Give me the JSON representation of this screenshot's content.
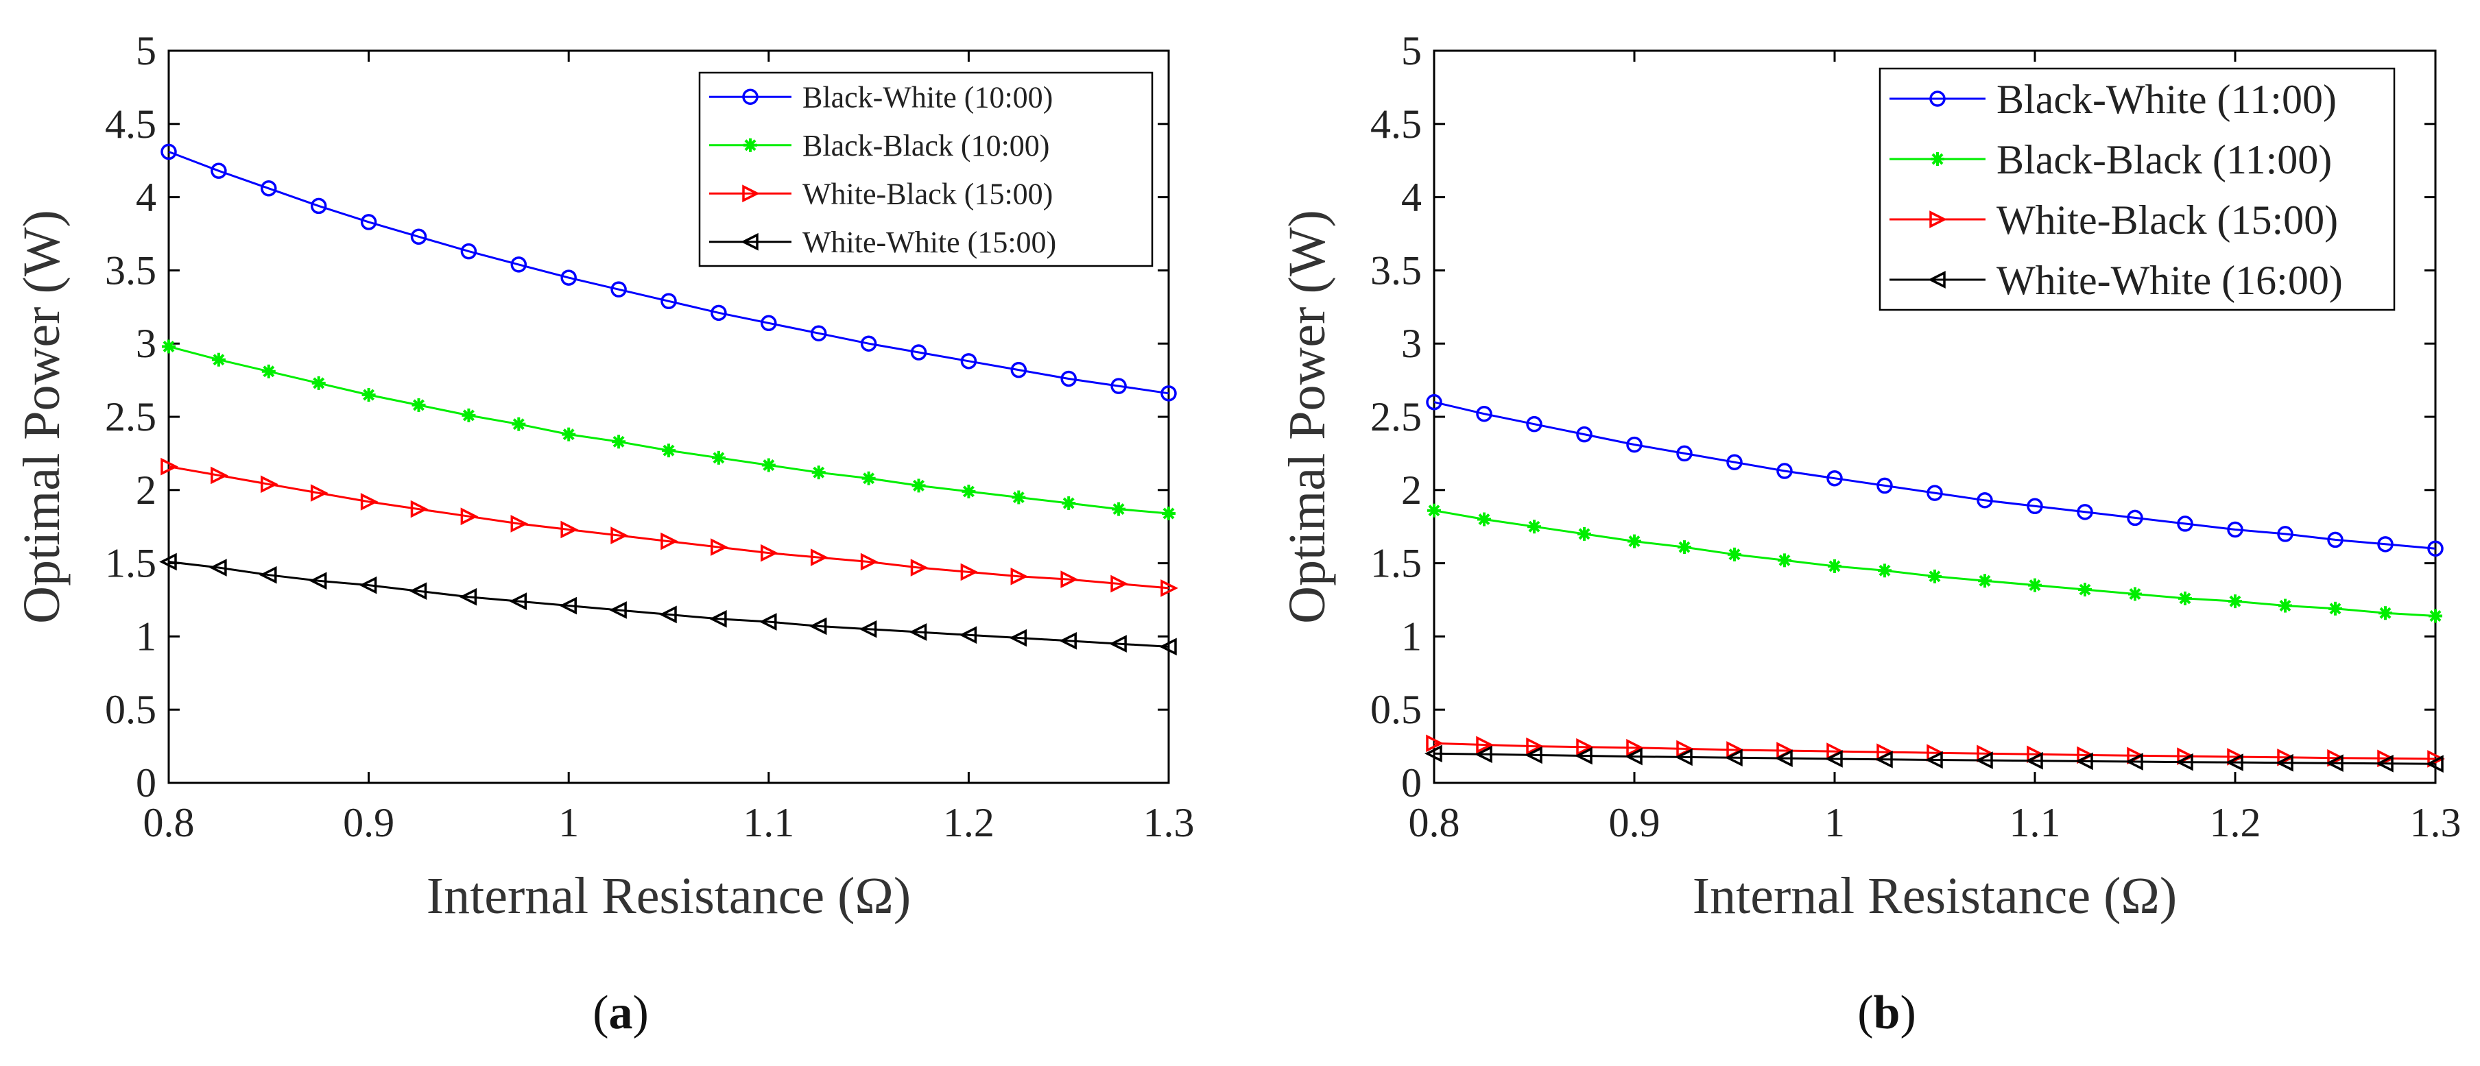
{
  "chart_data": [
    {
      "type": "line",
      "panel_label": "(a)",
      "panel_letter": "a",
      "xlabel": "Internal Resistance (Ω)",
      "ylabel": "Optimal Power (W)",
      "xlim": [
        0.8,
        1.3
      ],
      "ylim": [
        0,
        5
      ],
      "xticks": [
        "0.8",
        "0.9",
        "1",
        "1.1",
        "1.2",
        "1.3"
      ],
      "yticks": [
        "0",
        "0.5",
        "1",
        "1.5",
        "2",
        "2.5",
        "3",
        "3.5",
        "4",
        "4.5",
        "5"
      ],
      "legend_position": "top-right",
      "x": [
        0.8,
        0.825,
        0.85,
        0.875,
        0.9,
        0.925,
        0.95,
        0.975,
        1.0,
        1.025,
        1.05,
        1.075,
        1.1,
        1.125,
        1.15,
        1.175,
        1.2,
        1.225,
        1.25,
        1.275,
        1.3
      ],
      "series": [
        {
          "name": "Black-White (10:00)",
          "color": "#0000ff",
          "marker": "circle",
          "values": [
            4.31,
            4.18,
            4.06,
            3.94,
            3.83,
            3.73,
            3.63,
            3.54,
            3.45,
            3.37,
            3.29,
            3.21,
            3.14,
            3.07,
            3.0,
            2.94,
            2.88,
            2.82,
            2.76,
            2.71,
            2.66
          ]
        },
        {
          "name": "Black-Black (10:00)",
          "color": "#00ee00",
          "marker": "asterisk",
          "values": [
            2.98,
            2.89,
            2.81,
            2.73,
            2.65,
            2.58,
            2.51,
            2.45,
            2.38,
            2.33,
            2.27,
            2.22,
            2.17,
            2.12,
            2.08,
            2.03,
            1.99,
            1.95,
            1.91,
            1.87,
            1.84
          ]
        },
        {
          "name": "White-Black (15:00)",
          "color": "#ff0000",
          "marker": "triangle-right",
          "values": [
            2.16,
            2.1,
            2.04,
            1.98,
            1.92,
            1.87,
            1.82,
            1.77,
            1.73,
            1.69,
            1.65,
            1.61,
            1.57,
            1.54,
            1.51,
            1.47,
            1.44,
            1.41,
            1.39,
            1.36,
            1.33
          ]
        },
        {
          "name": "White-White (15:00)",
          "color": "#000000",
          "marker": "triangle-left",
          "values": [
            1.51,
            1.47,
            1.42,
            1.38,
            1.35,
            1.31,
            1.27,
            1.24,
            1.21,
            1.18,
            1.15,
            1.12,
            1.1,
            1.07,
            1.05,
            1.03,
            1.01,
            0.99,
            0.97,
            0.95,
            0.93
          ]
        }
      ]
    },
    {
      "type": "line",
      "panel_label": "(b)",
      "panel_letter": "b",
      "xlabel": "Internal Resistance (Ω)",
      "ylabel": "Optimal Power (W)",
      "xlim": [
        0.8,
        1.3
      ],
      "ylim": [
        0,
        5
      ],
      "xticks": [
        "0.8",
        "0.9",
        "1",
        "1.1",
        "1.2",
        "1.3"
      ],
      "yticks": [
        "0",
        "0.5",
        "1",
        "1.5",
        "2",
        "2.5",
        "3",
        "3.5",
        "4",
        "4.5",
        "5"
      ],
      "legend_position": "top-right",
      "x": [
        0.8,
        0.825,
        0.85,
        0.875,
        0.9,
        0.925,
        0.95,
        0.975,
        1.0,
        1.025,
        1.05,
        1.075,
        1.1,
        1.125,
        1.15,
        1.175,
        1.2,
        1.225,
        1.25,
        1.275,
        1.3
      ],
      "series": [
        {
          "name": "Black-White (11:00)",
          "color": "#0000ff",
          "marker": "circle",
          "values": [
            2.6,
            2.52,
            2.45,
            2.38,
            2.31,
            2.25,
            2.19,
            2.13,
            2.08,
            2.03,
            1.98,
            1.93,
            1.89,
            1.85,
            1.81,
            1.77,
            1.73,
            1.7,
            1.66,
            1.63,
            1.6
          ]
        },
        {
          "name": "Black-Black (11:00)",
          "color": "#00ee00",
          "marker": "asterisk",
          "values": [
            1.86,
            1.8,
            1.75,
            1.7,
            1.65,
            1.61,
            1.56,
            1.52,
            1.48,
            1.45,
            1.41,
            1.38,
            1.35,
            1.32,
            1.29,
            1.26,
            1.24,
            1.21,
            1.19,
            1.16,
            1.14
          ]
        },
        {
          "name": "White-Black (15:00)",
          "color": "#ff0000",
          "marker": "triangle-right",
          "values": [
            0.27,
            0.26,
            0.25,
            0.245,
            0.24,
            0.232,
            0.225,
            0.22,
            0.215,
            0.21,
            0.205,
            0.2,
            0.195,
            0.19,
            0.186,
            0.182,
            0.178,
            0.174,
            0.17,
            0.167,
            0.164
          ]
        },
        {
          "name": "White-White (16:00)",
          "color": "#000000",
          "marker": "triangle-left",
          "values": [
            0.2,
            0.195,
            0.19,
            0.185,
            0.18,
            0.176,
            0.172,
            0.168,
            0.164,
            0.16,
            0.157,
            0.154,
            0.151,
            0.148,
            0.145,
            0.142,
            0.14,
            0.137,
            0.135,
            0.132,
            0.13
          ]
        }
      ]
    }
  ]
}
